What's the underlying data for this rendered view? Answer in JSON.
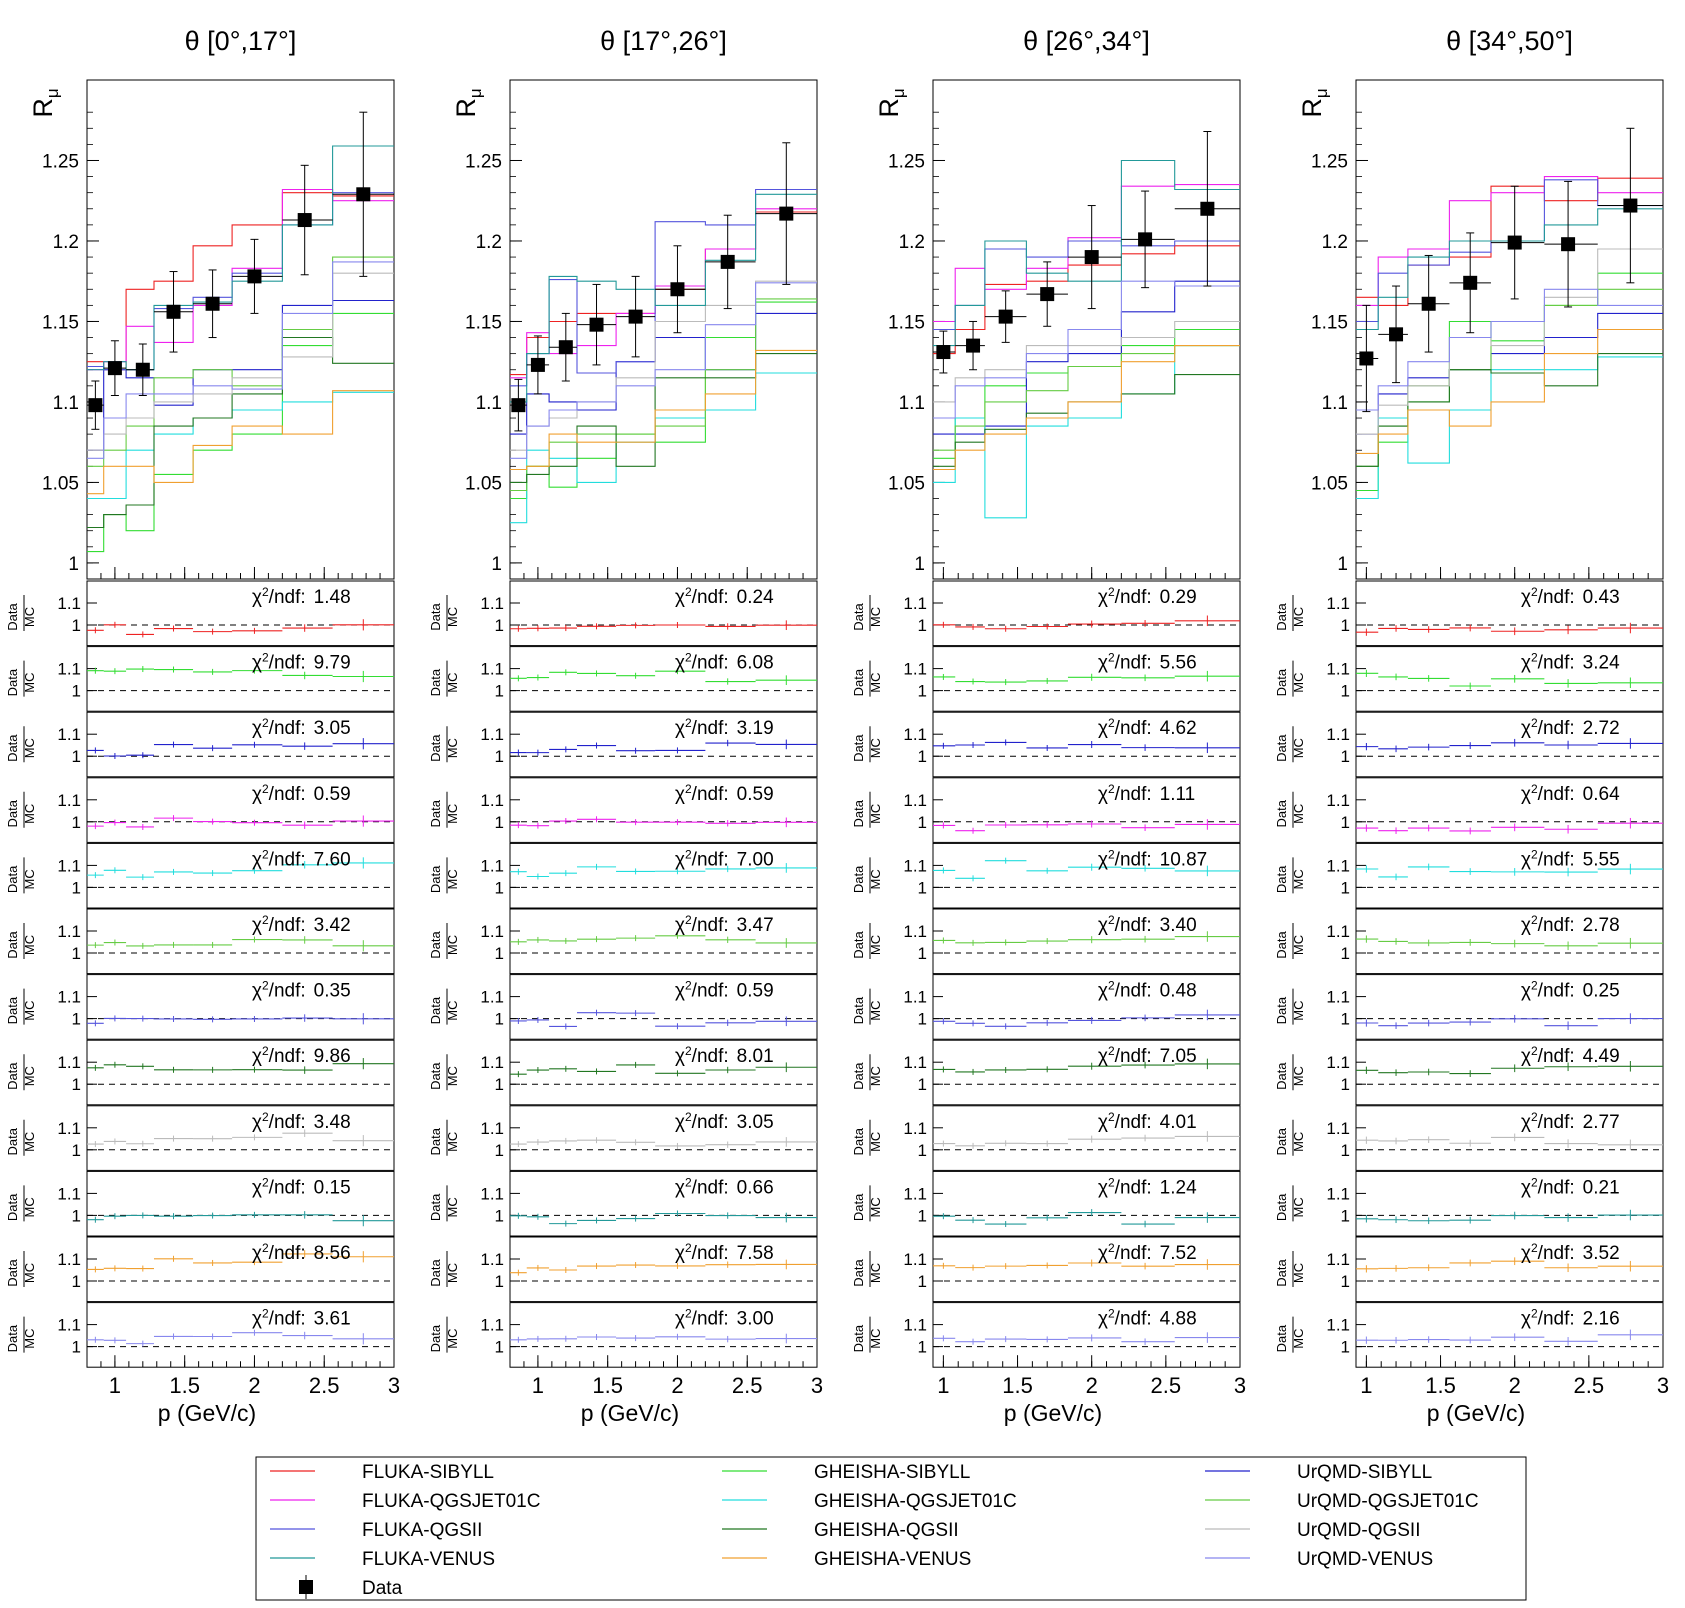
{
  "chart_data": {
    "type": "line",
    "ylabel": "R",
    "ylabel_sub": "μ",
    "xlabel": "p (GeV/c)",
    "ratio_label_top": "Data",
    "ratio_label_bottom": "MC",
    "ratio_tick_labels": [
      "1.1",
      "1"
    ],
    "chi2_prefix": "χ",
    "chi2_suffix": "/ndf:",
    "main_ylim": [
      0.99,
      1.3
    ],
    "main_yticks": [
      "1",
      "1.05",
      "1.1",
      "1.15",
      "1.2",
      "1.25"
    ],
    "xlim_by_panel": [
      [
        0.8,
        3.0
      ],
      [
        0.8,
        3.0
      ],
      [
        0.93,
        3.0
      ],
      [
        0.93,
        3.0
      ]
    ],
    "xticks_by_panel": [
      [
        "1",
        "1.5",
        "2",
        "2.5",
        "3"
      ],
      [
        "1",
        "1.5",
        "2",
        "2.5",
        "3"
      ],
      [
        "1",
        "1.5",
        "2",
        "2.5",
        "3"
      ],
      [
        "1",
        "1.5",
        "2",
        "2.5",
        "3"
      ]
    ],
    "models": [
      {
        "name": "FLUKA-SIBYLL",
        "color": "#ee2222"
      },
      {
        "name": "GHEISHA-SIBYLL",
        "color": "#33dd33"
      },
      {
        "name": "UrQMD-SIBYLL",
        "color": "#2222cc"
      },
      {
        "name": "FLUKA-QGSJET01C",
        "color": "#ee22ee"
      },
      {
        "name": "GHEISHA-QGSJET01C",
        "color": "#22dddd"
      },
      {
        "name": "UrQMD-QGSJET01C",
        "color": "#66cc44"
      },
      {
        "name": "FLUKA-QGSII",
        "color": "#5555dd"
      },
      {
        "name": "GHEISHA-QGSII",
        "color": "#227722"
      },
      {
        "name": "UrQMD-QGSII",
        "color": "#bbbbbb"
      },
      {
        "name": "FLUKA-VENUS",
        "color": "#229999"
      },
      {
        "name": "GHEISHA-VENUS",
        "color": "#f0a030"
      },
      {
        "name": "UrQMD-VENUS",
        "color": "#8888ee"
      }
    ],
    "data_legend": "Data",
    "panels": [
      {
        "title": "θ [0°,17°]",
        "bin_edges": [
          0.8,
          0.92,
          1.08,
          1.28,
          1.56,
          1.84,
          2.2,
          2.56,
          3.0
        ],
        "data": {
          "x": [
            0.86,
            1.0,
            1.2,
            1.42,
            1.7,
            2.0,
            2.36,
            2.78
          ],
          "y": [
            1.098,
            1.121,
            1.12,
            1.156,
            1.161,
            1.178,
            1.213,
            1.229
          ],
          "yerr": [
            0.015,
            0.017,
            0.016,
            0.025,
            0.021,
            0.023,
            0.034,
            0.051
          ]
        },
        "mc": [
          [
            1.125,
            1.12,
            1.17,
            1.175,
            1.197,
            1.21,
            1.23,
            1.228
          ],
          [
            1.007,
            1.03,
            1.02,
            1.055,
            1.07,
            1.08,
            1.135,
            1.155
          ],
          [
            1.07,
            1.12,
            1.115,
            1.098,
            1.12,
            1.12,
            1.16,
            1.163
          ],
          [
            1.12,
            1.125,
            1.147,
            1.137,
            1.16,
            1.183,
            1.232,
            1.225
          ],
          [
            1.04,
            1.04,
            1.07,
            1.08,
            1.09,
            1.095,
            1.1,
            1.106
          ],
          [
            1.06,
            1.07,
            1.085,
            1.115,
            1.12,
            1.11,
            1.145,
            1.19
          ],
          [
            1.122,
            1.12,
            1.12,
            1.158,
            1.165,
            1.18,
            1.21,
            1.23
          ],
          [
            1.022,
            1.03,
            1.036,
            1.085,
            1.09,
            1.105,
            1.14,
            1.124
          ],
          [
            1.07,
            1.08,
            1.09,
            1.1,
            1.105,
            1.115,
            1.128,
            1.18
          ],
          [
            1.12,
            1.125,
            1.12,
            1.16,
            1.162,
            1.175,
            1.21,
            1.259
          ],
          [
            1.043,
            1.06,
            1.06,
            1.05,
            1.073,
            1.085,
            1.08,
            1.107
          ],
          [
            1.065,
            1.09,
            1.105,
            1.105,
            1.11,
            1.108,
            1.155,
            1.187
          ]
        ],
        "chi2": [
          "1.48",
          "9.79",
          "3.05",
          "0.59",
          "7.60",
          "3.42",
          "0.35",
          "9.86",
          "3.48",
          "0.15",
          "8.56",
          "3.61"
        ]
      },
      {
        "title": "θ [17°,26°]",
        "bin_edges": [
          0.8,
          0.92,
          1.08,
          1.28,
          1.56,
          1.84,
          2.2,
          2.56,
          3.0
        ],
        "data": {
          "x": [
            0.86,
            1.0,
            1.2,
            1.42,
            1.7,
            2.0,
            2.36,
            2.78
          ],
          "y": [
            1.098,
            1.123,
            1.134,
            1.148,
            1.153,
            1.17,
            1.187,
            1.217
          ],
          "yerr": [
            0.016,
            0.018,
            0.021,
            0.025,
            0.025,
            0.027,
            0.029,
            0.044
          ]
        },
        "mc": [
          [
            1.117,
            1.14,
            1.15,
            1.155,
            1.155,
            1.17,
            1.195,
            1.218
          ],
          [
            1.04,
            1.06,
            1.047,
            1.065,
            1.08,
            1.075,
            1.14,
            1.162
          ],
          [
            1.08,
            1.105,
            1.1,
            1.095,
            1.125,
            1.14,
            1.12,
            1.155
          ],
          [
            1.115,
            1.143,
            1.13,
            1.135,
            1.155,
            1.172,
            1.195,
            1.22
          ],
          [
            1.025,
            1.07,
            1.065,
            1.05,
            1.075,
            1.09,
            1.095,
            1.118
          ],
          [
            1.045,
            1.06,
            1.075,
            1.08,
            1.08,
            1.085,
            1.12,
            1.164
          ],
          [
            1.11,
            1.13,
            1.176,
            1.118,
            1.125,
            1.212,
            1.21,
            1.232
          ],
          [
            1.05,
            1.055,
            1.06,
            1.085,
            1.06,
            1.115,
            1.115,
            1.13
          ],
          [
            1.07,
            1.085,
            1.09,
            1.1,
            1.115,
            1.15,
            1.16,
            1.175
          ],
          [
            1.1,
            1.13,
            1.178,
            1.175,
            1.17,
            1.16,
            1.188,
            1.229
          ],
          [
            1.058,
            1.06,
            1.08,
            1.075,
            1.075,
            1.095,
            1.105,
            1.132
          ],
          [
            1.065,
            1.085,
            1.095,
            1.1,
            1.11,
            1.12,
            1.148,
            1.174
          ]
        ],
        "chi2": [
          "0.24",
          "6.08",
          "3.19",
          "0.59",
          "7.00",
          "3.47",
          "0.59",
          "8.01",
          "3.05",
          "0.66",
          "7.58",
          "3.00"
        ]
      },
      {
        "title": "θ [26°,34°]",
        "bin_edges": [
          0.93,
          1.08,
          1.28,
          1.56,
          1.84,
          2.2,
          2.56,
          3.0
        ],
        "data": {
          "x": [
            1.0,
            1.2,
            1.42,
            1.7,
            2.0,
            2.36,
            2.78
          ],
          "y": [
            1.131,
            1.135,
            1.153,
            1.167,
            1.19,
            1.201,
            1.22
          ],
          "yerr": [
            0.013,
            0.015,
            0.016,
            0.02,
            0.032,
            0.03,
            0.048
          ]
        },
        "mc": [
          [
            1.13,
            1.145,
            1.173,
            1.175,
            1.185,
            1.192,
            1.197
          ],
          [
            1.065,
            1.09,
            1.11,
            1.118,
            1.122,
            1.135,
            1.145
          ],
          [
            1.08,
            1.08,
            1.085,
            1.125,
            1.13,
            1.156,
            1.175
          ],
          [
            1.15,
            1.183,
            1.17,
            1.183,
            1.202,
            1.234,
            1.235
          ],
          [
            1.05,
            1.09,
            1.028,
            1.085,
            1.09,
            1.105,
            1.135
          ],
          [
            1.07,
            1.085,
            1.1,
            1.107,
            1.122,
            1.13,
            1.135
          ],
          [
            1.145,
            1.16,
            1.195,
            1.19,
            1.2,
            1.197,
            1.2
          ],
          [
            1.06,
            1.075,
            1.083,
            1.093,
            1.1,
            1.105,
            1.117
          ],
          [
            1.1,
            1.115,
            1.12,
            1.135,
            1.135,
            1.14,
            1.15
          ],
          [
            1.135,
            1.16,
            1.2,
            1.18,
            1.175,
            1.25,
            1.232
          ],
          [
            1.058,
            1.07,
            1.08,
            1.09,
            1.1,
            1.125,
            1.135
          ],
          [
            1.09,
            1.11,
            1.115,
            1.13,
            1.145,
            1.175,
            1.172
          ]
        ],
        "chi2": [
          "0.29",
          "5.56",
          "4.62",
          "1.11",
          "10.87",
          "3.40",
          "0.48",
          "7.05",
          "4.01",
          "1.24",
          "7.52",
          "4.88"
        ]
      },
      {
        "title": "θ [34°,50°]",
        "bin_edges": [
          0.93,
          1.08,
          1.28,
          1.56,
          1.84,
          2.2,
          2.56,
          3.0
        ],
        "data": {
          "x": [
            1.0,
            1.2,
            1.42,
            1.7,
            2.0,
            2.36,
            2.78
          ],
          "y": [
            1.127,
            1.142,
            1.161,
            1.174,
            1.199,
            1.198,
            1.222
          ],
          "yerr": [
            0.033,
            0.03,
            0.03,
            0.031,
            0.035,
            0.039,
            0.048
          ]
        },
        "mc": [
          [
            1.165,
            1.16,
            1.185,
            1.19,
            1.234,
            1.225,
            1.239
          ],
          [
            1.045,
            1.075,
            1.1,
            1.15,
            1.138,
            1.16,
            1.18
          ],
          [
            1.08,
            1.105,
            1.115,
            1.12,
            1.13,
            1.14,
            1.155
          ],
          [
            1.16,
            1.19,
            1.195,
            1.225,
            1.23,
            1.24,
            1.23
          ],
          [
            1.04,
            1.09,
            1.062,
            1.095,
            1.12,
            1.12,
            1.128
          ],
          [
            1.06,
            1.085,
            1.11,
            1.12,
            1.15,
            1.16,
            1.17
          ],
          [
            1.15,
            1.18,
            1.185,
            1.193,
            1.2,
            1.238,
            1.222
          ],
          [
            1.06,
            1.085,
            1.1,
            1.12,
            1.118,
            1.11,
            1.13
          ],
          [
            1.08,
            1.098,
            1.11,
            1.14,
            1.135,
            1.165,
            1.195
          ],
          [
            1.145,
            1.165,
            1.19,
            1.2,
            1.2,
            1.21,
            1.22
          ],
          [
            1.068,
            1.08,
            1.095,
            1.085,
            1.1,
            1.13,
            1.145
          ],
          [
            1.095,
            1.11,
            1.125,
            1.14,
            1.15,
            1.17,
            1.16
          ]
        ],
        "chi2": [
          "0.43",
          "3.24",
          "2.72",
          "0.64",
          "5.55",
          "2.78",
          "0.25",
          "4.49",
          "2.77",
          "0.21",
          "3.52",
          "2.16"
        ]
      }
    ]
  }
}
